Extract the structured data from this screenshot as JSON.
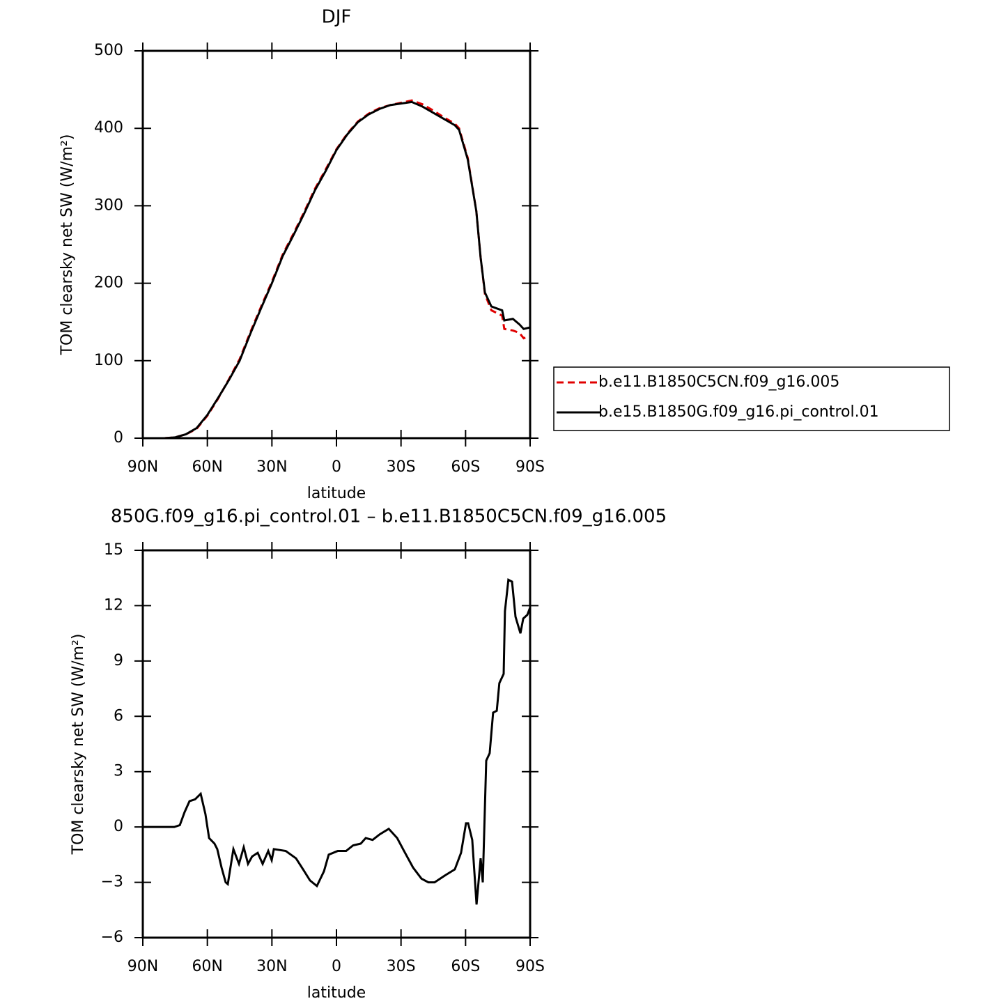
{
  "chart_data": [
    {
      "type": "line",
      "title": "DJF",
      "xlabel": "latitude",
      "ylabel": "TOM clearsky net SW (W/m²)",
      "x": [
        90,
        80,
        75,
        70,
        65,
        60,
        55,
        50,
        45,
        40,
        35,
        30,
        25,
        20,
        15,
        10,
        5,
        0,
        -5,
        -10,
        -15,
        -20,
        -25,
        -30,
        -35,
        -40,
        -45,
        -50,
        -55,
        -57,
        -61,
        -65,
        -67,
        -69,
        -72,
        -75,
        -77,
        -78,
        -82,
        -85,
        -87,
        -90
      ],
      "xlim": [
        90,
        -90
      ],
      "xticks": [
        {
          "value": 90,
          "label": "90N"
        },
        {
          "value": 60,
          "label": "60N"
        },
        {
          "value": 30,
          "label": "30N"
        },
        0,
        {
          "value": -30,
          "label": "30S"
        },
        {
          "value": -60,
          "label": "60S"
        },
        {
          "value": -90,
          "label": "90S"
        }
      ],
      "ylim": [
        0,
        500
      ],
      "yticks": [
        0,
        100,
        200,
        300,
        400,
        500
      ],
      "legend": "right",
      "series": [
        {
          "name": "b.e11.B1850C5CN.f09_g16.005",
          "color": "#e00000",
          "dashed": true,
          "values": [
            0,
            0,
            1,
            5,
            12,
            29,
            51,
            76,
            102,
            137,
            170,
            202,
            237,
            264,
            292,
            322,
            347,
            373,
            393,
            409,
            419,
            426,
            430,
            433,
            436,
            431,
            423,
            414,
            406,
            400,
            362,
            293,
            233,
            186,
            165,
            161,
            158,
            141,
            139,
            136,
            129,
            132
          ]
        },
        {
          "name": "b.e15.B1850G.f09_g16.pi_control.01",
          "color": "#000000",
          "dashed": false,
          "values": [
            0,
            0,
            1,
            5,
            13,
            30,
            52,
            75,
            100,
            135,
            168,
            200,
            235,
            262,
            290,
            320,
            345,
            372,
            392,
            408,
            418,
            425,
            430,
            432,
            434,
            428,
            420,
            412,
            404,
            398,
            360,
            293,
            233,
            188,
            170,
            167,
            165,
            152,
            154,
            147,
            141,
            143
          ]
        }
      ]
    },
    {
      "type": "line",
      "title": "850G.f09_g16.pi_control.01 – b.e11.B1850C5CN.f09_g16.005",
      "xlabel": "latitude",
      "ylabel": "TOM clearsky net SW (W/m²)",
      "x": [
        90,
        75.4,
        72.8,
        70.6,
        68.3,
        65.7,
        63.1,
        60.9,
        59.2,
        56.7,
        55.4,
        53.4,
        51.5,
        50.5,
        47.9,
        45.3,
        43.1,
        41.1,
        39.2,
        36.6,
        34.3,
        31.7,
        30.1,
        29.1,
        23.6,
        18.8,
        15.5,
        12.3,
        9.1,
        5.8,
        3.6,
        -0.6,
        -4.5,
        -7.7,
        -11.3,
        -13.6,
        -16.8,
        -20.1,
        -24.3,
        -28.2,
        -31.4,
        -35.6,
        -39.5,
        -42.7,
        -45.6,
        -50.8,
        -55,
        -57.9,
        -60.2,
        -61.2,
        -63.1,
        -65.1,
        -67,
        -68,
        -69.6,
        -71.2,
        -72.8,
        -74.5,
        -75.7,
        -77.7,
        -78.3,
        -79.9,
        -81.6,
        -83.2,
        -85.5,
        -86.8,
        -88.7,
        -90
      ],
      "xlim": [
        90,
        -90
      ],
      "xticks": [
        {
          "value": 90,
          "label": "90N"
        },
        {
          "value": 60,
          "label": "60N"
        },
        {
          "value": 30,
          "label": "30N"
        },
        0,
        {
          "value": -30,
          "label": "30S"
        },
        {
          "value": -60,
          "label": "60S"
        },
        {
          "value": -90,
          "label": "90S"
        }
      ],
      "ylim": [
        -6,
        15
      ],
      "yticks": [
        {
          "value": -6,
          "label": "−6"
        },
        {
          "value": -3,
          "label": "−3"
        },
        0,
        3,
        6,
        9,
        12,
        15
      ],
      "series": [
        {
          "color": "#000000",
          "dashed": false,
          "values": [
            0,
            0,
            0.1,
            0.8,
            1.4,
            1.5,
            1.8,
            0.7,
            -0.6,
            -0.9,
            -1.2,
            -2.2,
            -3.0,
            -3.1,
            -1.2,
            -2.0,
            -1.1,
            -2.0,
            -1.6,
            -1.4,
            -2.0,
            -1.3,
            -1.8,
            -1.2,
            -1.3,
            -1.7,
            -2.3,
            -2.9,
            -3.2,
            -2.4,
            -1.5,
            -1.3,
            -1.3,
            -1.0,
            -0.9,
            -0.6,
            -0.7,
            -0.4,
            -0.1,
            -0.6,
            -1.3,
            -2.2,
            -2.8,
            -3.0,
            -3.0,
            -2.6,
            -2.3,
            -1.4,
            0.2,
            0.2,
            -0.7,
            -4.2,
            -1.7,
            -3.0,
            3.6,
            4.0,
            6.2,
            6.3,
            7.8,
            8.3,
            11.7,
            13.4,
            13.3,
            11.4,
            10.5,
            11.3,
            11.5,
            11.9
          ]
        }
      ]
    }
  ]
}
